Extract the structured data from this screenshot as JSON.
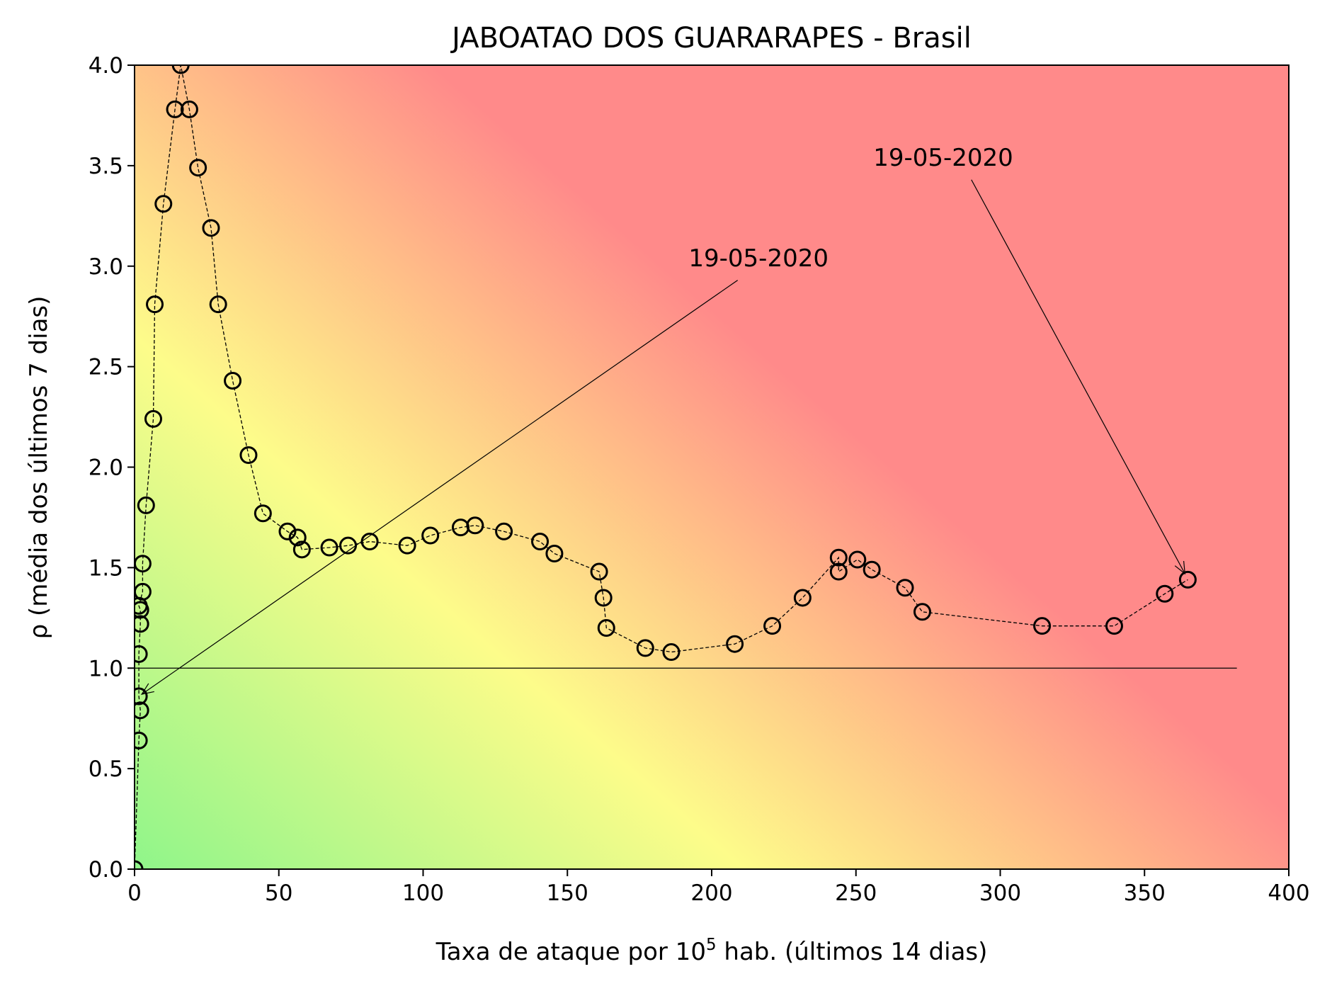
{
  "chart_data": {
    "type": "scatter",
    "title": "JABOATAO DOS GUARARAPES - Brasil",
    "xlabel_prefix": "Taxa de ataque por 10",
    "xlabel_sup": "5",
    "xlabel_suffix": " hab. (últimos 14 dias)",
    "ylabel": "ρ (média dos últimos 7 dias)",
    "xlim": [
      0,
      400
    ],
    "ylim": [
      0,
      4
    ],
    "xticks": [
      0,
      50,
      100,
      150,
      200,
      250,
      300,
      350,
      400
    ],
    "yticks": [
      "0.0",
      "0.5",
      "1.0",
      "1.5",
      "2.0",
      "2.5",
      "3.0",
      "3.5",
      "4.0"
    ],
    "background": "risk gradient: green (low) → yellow → orange → red (high)",
    "colors": {
      "green": "#8ff58a",
      "yellow": "#fdfc8a",
      "orange": "#ffb988",
      "red": "#ff8a8a"
    },
    "reference_line": {
      "y": 1.0,
      "x_from": 0,
      "x_to": 382
    },
    "series": [
      {
        "marker": "open circle",
        "line": "dashed",
        "points": [
          [
            0.0,
            0.0
          ],
          [
            1.5,
            0.64
          ],
          [
            2.0,
            0.79
          ],
          [
            1.5,
            0.86
          ],
          [
            1.5,
            1.07
          ],
          [
            2.0,
            1.22
          ],
          [
            2.0,
            1.29
          ],
          [
            1.5,
            1.31
          ],
          [
            2.8,
            1.38
          ],
          [
            2.8,
            1.52
          ],
          [
            4.0,
            1.81
          ],
          [
            6.5,
            2.24
          ],
          [
            7.0,
            2.81
          ],
          [
            10.0,
            3.31
          ],
          [
            14.0,
            3.78
          ],
          [
            16.0,
            4.0
          ],
          [
            19.0,
            3.78
          ],
          [
            22.0,
            3.49
          ],
          [
            26.5,
            3.19
          ],
          [
            29.0,
            2.81
          ],
          [
            34.0,
            2.43
          ],
          [
            39.5,
            2.06
          ],
          [
            44.5,
            1.77
          ],
          [
            53.0,
            1.68
          ],
          [
            56.5,
            1.65
          ],
          [
            58.0,
            1.59
          ],
          [
            67.5,
            1.6
          ],
          [
            74.0,
            1.61
          ],
          [
            81.5,
            1.63
          ],
          [
            94.5,
            1.61
          ],
          [
            102.5,
            1.66
          ],
          [
            113.0,
            1.7
          ],
          [
            118.0,
            1.71
          ],
          [
            128.0,
            1.68
          ],
          [
            140.5,
            1.63
          ],
          [
            145.5,
            1.57
          ],
          [
            161.0,
            1.48
          ],
          [
            162.5,
            1.35
          ],
          [
            163.5,
            1.2
          ],
          [
            177.0,
            1.1
          ],
          [
            186.0,
            1.08
          ],
          [
            208.0,
            1.12
          ],
          [
            221.0,
            1.21
          ],
          [
            231.5,
            1.35
          ],
          [
            244.0,
            1.55
          ],
          [
            244.0,
            1.48
          ],
          [
            250.5,
            1.54
          ],
          [
            255.5,
            1.49
          ],
          [
            267.0,
            1.4
          ],
          [
            273.0,
            1.28
          ],
          [
            314.5,
            1.21
          ],
          [
            339.5,
            1.21
          ],
          [
            357.0,
            1.37
          ],
          [
            365.0,
            1.44
          ]
        ]
      }
    ],
    "annotations": [
      {
        "text": "19-05-2020",
        "text_at": [
          192,
          3.0
        ],
        "arrow_tail": [
          209,
          2.93
        ],
        "arrow_head": [
          2.5,
          0.87
        ]
      },
      {
        "text": "19-05-2020",
        "text_at": [
          256,
          3.5
        ],
        "arrow_tail": [
          290,
          3.43
        ],
        "arrow_head": [
          364,
          1.47
        ]
      }
    ]
  }
}
